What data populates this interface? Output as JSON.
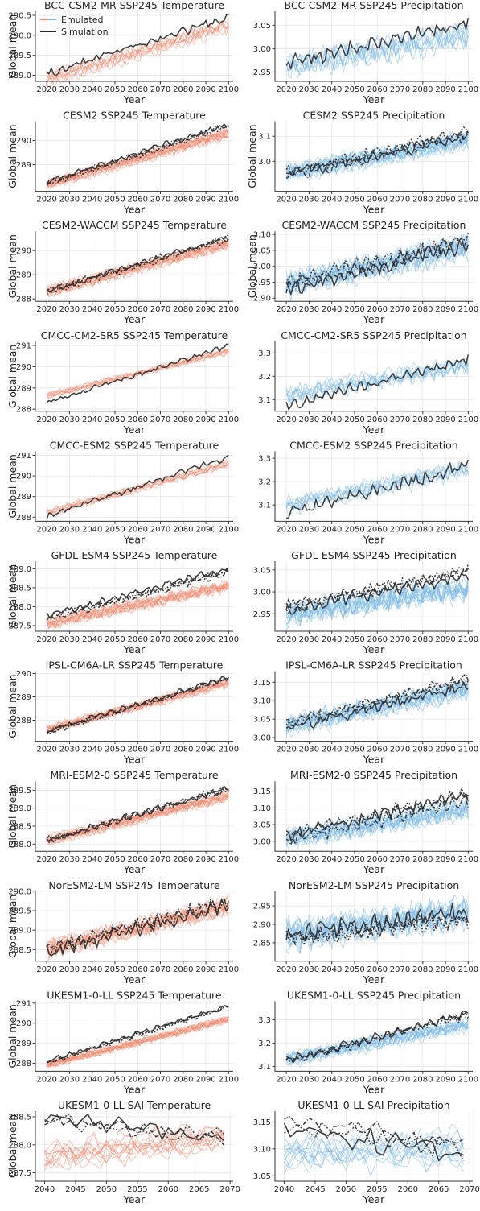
{
  "figure": {
    "legend": {
      "position": "top-left",
      "entries": [
        "Emulated",
        "Simulation"
      ]
    }
  },
  "colors": {
    "temperature": "#f08a70",
    "precipitation": "#79b8e6",
    "simulation": "#2b2b2b",
    "grid": "#e6e6e6",
    "axis": "#333333"
  },
  "chart_data": [
    {
      "type": "line",
      "title": "BCC-CSM2-MR SSP245 Temperature",
      "variable": "temperature",
      "xlabel": "Year",
      "ylabel": "Global mean",
      "xlim": [
        2015,
        2102
      ],
      "ylim": [
        288.85,
        290.6
      ],
      "xticks": [
        2020,
        2030,
        2040,
        2050,
        2060,
        2070,
        2080,
        2090,
        2100
      ],
      "yticks": [
        289.0,
        289.5,
        290.0,
        290.5
      ],
      "sim": {
        "start": 289.0,
        "end": 290.4,
        "noise": 0.08
      },
      "emu": {
        "start": 288.9,
        "end": 290.25,
        "noise": 0.12
      },
      "n_emu": 8,
      "n_sim": 1,
      "x_range": [
        2020,
        2100
      ],
      "legend": true
    },
    {
      "type": "line",
      "title": "BCC-CSM2-MR SSP245 Precipitation",
      "variable": "precipitation",
      "xlabel": "Year",
      "ylabel": "",
      "xlim": [
        2015,
        2102
      ],
      "ylim": [
        2.93,
        3.08
      ],
      "xticks": [
        2020,
        2030,
        2040,
        2050,
        2060,
        2070,
        2080,
        2090,
        2100
      ],
      "yticks": [
        2.95,
        3.0,
        3.05
      ],
      "sim": {
        "start": 2.97,
        "end": 3.06,
        "noise": 0.012
      },
      "emu": {
        "start": 2.96,
        "end": 3.03,
        "noise": 0.018
      },
      "n_emu": 8,
      "n_sim": 1,
      "x_range": [
        2020,
        2100
      ]
    },
    {
      "type": "line",
      "title": "CESM2 SSP245 Temperature",
      "variable": "temperature",
      "xlabel": "Year",
      "ylabel": "Global mean",
      "xlim": [
        2015,
        2102
      ],
      "ylim": [
        287.9,
        290.8
      ],
      "xticks": [
        2020,
        2030,
        2040,
        2050,
        2060,
        2070,
        2080,
        2090,
        2100
      ],
      "yticks": [
        289,
        290
      ],
      "sim": {
        "start": 288.2,
        "end": 290.6,
        "noise": 0.1
      },
      "emu": {
        "start": 288.2,
        "end": 290.3,
        "noise": 0.15
      },
      "n_emu": 14,
      "n_sim": 3,
      "x_range": [
        2020,
        2100
      ]
    },
    {
      "type": "line",
      "title": "CESM2 SSP245 Precipitation",
      "variable": "precipitation",
      "xlabel": "Year",
      "ylabel": "Global mean",
      "xlim": [
        2015,
        2102
      ],
      "ylim": [
        2.88,
        3.16
      ],
      "xticks": [
        2020,
        2030,
        2040,
        2050,
        2060,
        2070,
        2080,
        2090,
        2100
      ],
      "yticks": [
        3.0,
        3.1
      ],
      "sim": {
        "start": 2.95,
        "end": 3.11,
        "noise": 0.02
      },
      "emu": {
        "start": 2.95,
        "end": 3.08,
        "noise": 0.025
      },
      "n_emu": 14,
      "n_sim": 3,
      "x_range": [
        2020,
        2100
      ]
    },
    {
      "type": "line",
      "title": "CESM2-WACCM SSP245 Temperature",
      "variable": "temperature",
      "xlabel": "Year",
      "ylabel": "Global mean",
      "xlim": [
        2015,
        2102
      ],
      "ylim": [
        287.9,
        290.8
      ],
      "xticks": [
        2020,
        2030,
        2040,
        2050,
        2060,
        2070,
        2080,
        2090,
        2100
      ],
      "yticks": [
        288,
        289,
        290
      ],
      "sim": {
        "start": 288.3,
        "end": 290.5,
        "noise": 0.1
      },
      "emu": {
        "start": 288.3,
        "end": 290.3,
        "noise": 0.15
      },
      "n_emu": 14,
      "n_sim": 3,
      "x_range": [
        2020,
        2100
      ]
    },
    {
      "type": "line",
      "title": "CESM2-WACCM SSP245 Precipitation",
      "variable": "precipitation",
      "xlabel": "Year",
      "ylabel": "Global mean",
      "xlim": [
        2015,
        2102
      ],
      "ylim": [
        2.89,
        3.11
      ],
      "xticks": [
        2020,
        2030,
        2040,
        2050,
        2060,
        2070,
        2080,
        2090,
        2100
      ],
      "yticks": [
        2.9,
        2.95,
        3.0,
        3.05,
        3.1
      ],
      "sim": {
        "start": 2.94,
        "end": 3.08,
        "noise": 0.02
      },
      "emu": {
        "start": 2.94,
        "end": 3.06,
        "noise": 0.025
      },
      "n_emu": 14,
      "n_sim": 3,
      "x_range": [
        2020,
        2100
      ]
    },
    {
      "type": "line",
      "title": "CMCC-CM2-SR5 SSP245 Temperature",
      "variable": "temperature",
      "xlabel": "Year",
      "ylabel": "Global mean",
      "xlim": [
        2015,
        2102
      ],
      "ylim": [
        287.9,
        291.2
      ],
      "xticks": [
        2020,
        2030,
        2040,
        2050,
        2060,
        2070,
        2080,
        2090,
        2100
      ],
      "yticks": [
        288,
        289,
        290,
        291
      ],
      "sim": {
        "start": 288.3,
        "end": 291.0,
        "noise": 0.1
      },
      "emu": {
        "start": 288.6,
        "end": 290.7,
        "noise": 0.12
      },
      "n_emu": 8,
      "n_sim": 1,
      "x_range": [
        2020,
        2100
      ]
    },
    {
      "type": "line",
      "title": "CMCC-CM2-SR5 SSP245 Precipitation",
      "variable": "precipitation",
      "xlabel": "Year",
      "ylabel": "",
      "xlim": [
        2015,
        2102
      ],
      "ylim": [
        3.05,
        3.35
      ],
      "xticks": [
        2020,
        2030,
        2040,
        2050,
        2060,
        2070,
        2080,
        2090,
        2100
      ],
      "yticks": [
        3.1,
        3.2,
        3.3
      ],
      "sim": {
        "start": 3.09,
        "end": 3.29,
        "noise": 0.02
      },
      "emu": {
        "start": 3.12,
        "end": 3.25,
        "noise": 0.025
      },
      "n_emu": 8,
      "n_sim": 1,
      "x_range": [
        2020,
        2100
      ]
    },
    {
      "type": "line",
      "title": "CMCC-ESM2 SSP245 Temperature",
      "variable": "temperature",
      "xlabel": "Year",
      "ylabel": "Global mean",
      "xlim": [
        2015,
        2102
      ],
      "ylim": [
        287.8,
        291.2
      ],
      "xticks": [
        2020,
        2030,
        2040,
        2050,
        2060,
        2070,
        2080,
        2090,
        2100
      ],
      "yticks": [
        288,
        289,
        290,
        291
      ],
      "sim": {
        "start": 288.0,
        "end": 290.9,
        "noise": 0.12
      },
      "emu": {
        "start": 288.2,
        "end": 290.6,
        "noise": 0.12
      },
      "n_emu": 8,
      "n_sim": 1,
      "x_range": [
        2020,
        2100
      ]
    },
    {
      "type": "line",
      "title": "CMCC-ESM2 SSP245 Precipitation",
      "variable": "precipitation",
      "xlabel": "Year",
      "ylabel": "",
      "xlim": [
        2015,
        2102
      ],
      "ylim": [
        3.03,
        3.33
      ],
      "xticks": [
        2020,
        2030,
        2040,
        2050,
        2060,
        2070,
        2080,
        2090,
        2100
      ],
      "yticks": [
        3.1,
        3.2,
        3.3
      ],
      "sim": {
        "start": 3.07,
        "end": 3.28,
        "noise": 0.025
      },
      "emu": {
        "start": 3.09,
        "end": 3.25,
        "noise": 0.025
      },
      "n_emu": 8,
      "n_sim": 1,
      "x_range": [
        2020,
        2100
      ]
    },
    {
      "type": "line",
      "title": "GFDL-ESM4 SSP245 Temperature",
      "variable": "temperature",
      "xlabel": "Year",
      "ylabel": "Global mean",
      "xlim": [
        2015,
        2102
      ],
      "ylim": [
        287.35,
        289.2
      ],
      "xticks": [
        2020,
        2030,
        2040,
        2050,
        2060,
        2070,
        2080,
        2090,
        2100
      ],
      "yticks": [
        287.5,
        288.0,
        288.5,
        289.0
      ],
      "sim": {
        "start": 287.7,
        "end": 288.95,
        "noise": 0.08
      },
      "emu": {
        "start": 287.55,
        "end": 288.55,
        "noise": 0.1
      },
      "n_emu": 14,
      "n_sim": 3,
      "x_range": [
        2020,
        2100
      ]
    },
    {
      "type": "line",
      "title": "GFDL-ESM4 SSP245 Precipitation",
      "variable": "precipitation",
      "xlabel": "Year",
      "ylabel": "",
      "xlim": [
        2015,
        2102
      ],
      "ylim": [
        2.91,
        3.07
      ],
      "xticks": [
        2020,
        2030,
        2040,
        2050,
        2060,
        2070,
        2080,
        2090,
        2100
      ],
      "yticks": [
        2.95,
        3.0,
        3.05
      ],
      "sim": {
        "start": 2.96,
        "end": 3.04,
        "noise": 0.012
      },
      "emu": {
        "start": 2.95,
        "end": 3.01,
        "noise": 0.018
      },
      "n_emu": 14,
      "n_sim": 3,
      "x_range": [
        2020,
        2100
      ]
    },
    {
      "type": "line",
      "title": "IPSL-CM6A-LR SSP245 Temperature",
      "variable": "temperature",
      "xlabel": "Year",
      "ylabel": "Global mean",
      "xlim": [
        2015,
        2102
      ],
      "ylim": [
        287.1,
        290.1
      ],
      "xticks": [
        2020,
        2030,
        2040,
        2050,
        2060,
        2070,
        2080,
        2090,
        2100
      ],
      "yticks": [
        288,
        289,
        290
      ],
      "sim": {
        "start": 287.5,
        "end": 289.8,
        "noise": 0.1
      },
      "emu": {
        "start": 287.6,
        "end": 289.6,
        "noise": 0.12
      },
      "n_emu": 14,
      "n_sim": 3,
      "x_range": [
        2020,
        2100
      ]
    },
    {
      "type": "line",
      "title": "IPSL-CM6A-LR SSP245 Precipitation",
      "variable": "precipitation",
      "xlabel": "Year",
      "ylabel": "",
      "xlim": [
        2015,
        2102
      ],
      "ylim": [
        2.99,
        3.18
      ],
      "xticks": [
        2020,
        2030,
        2040,
        2050,
        2060,
        2070,
        2080,
        2090,
        2100
      ],
      "yticks": [
        3.0,
        3.05,
        3.1,
        3.15
      ],
      "sim": {
        "start": 3.03,
        "end": 3.15,
        "noise": 0.012
      },
      "emu": {
        "start": 3.03,
        "end": 3.13,
        "noise": 0.018
      },
      "n_emu": 14,
      "n_sim": 3,
      "x_range": [
        2020,
        2100
      ]
    },
    {
      "type": "line",
      "title": "MRI-ESM2-0 SSP245 Temperature",
      "variable": "temperature",
      "xlabel": "Year",
      "ylabel": "Global mean",
      "xlim": [
        2015,
        2102
      ],
      "ylim": [
        287.8,
        289.75
      ],
      "xticks": [
        2020,
        2030,
        2040,
        2050,
        2060,
        2070,
        2080,
        2090,
        2100
      ],
      "yticks": [
        288.0,
        288.5,
        289.0,
        289.5
      ],
      "sim": {
        "start": 288.1,
        "end": 289.55,
        "noise": 0.08
      },
      "emu": {
        "start": 288.1,
        "end": 289.35,
        "noise": 0.1
      },
      "n_emu": 14,
      "n_sim": 3,
      "x_range": [
        2020,
        2100
      ]
    },
    {
      "type": "line",
      "title": "MRI-ESM2-0 SSP245 Precipitation",
      "variable": "precipitation",
      "xlabel": "Year",
      "ylabel": "",
      "xlim": [
        2015,
        2102
      ],
      "ylim": [
        2.97,
        3.18
      ],
      "xticks": [
        2020,
        2030,
        2040,
        2050,
        2060,
        2070,
        2080,
        2090,
        2100
      ],
      "yticks": [
        3.0,
        3.05,
        3.1,
        3.15
      ],
      "sim": {
        "start": 3.01,
        "end": 3.13,
        "noise": 0.015
      },
      "emu": {
        "start": 3.01,
        "end": 3.1,
        "noise": 0.02
      },
      "n_emu": 14,
      "n_sim": 3,
      "x_range": [
        2020,
        2100
      ]
    },
    {
      "type": "line",
      "title": "NorESM2-LM SSP245 Temperature",
      "variable": "temperature",
      "xlabel": "Year",
      "ylabel": "Global mean",
      "xlim": [
        2015,
        2102
      ],
      "ylim": [
        288.2,
        290.0
      ],
      "xticks": [
        2020,
        2030,
        2040,
        2050,
        2060,
        2070,
        2080,
        2090,
        2100
      ],
      "yticks": [
        288.5,
        289.0,
        289.5,
        290.0
      ],
      "sim": {
        "start": 288.5,
        "end": 289.7,
        "noise": 0.15
      },
      "emu": {
        "start": 288.5,
        "end": 289.6,
        "noise": 0.15
      },
      "n_emu": 14,
      "n_sim": 3,
      "x_range": [
        2020,
        2100
      ]
    },
    {
      "type": "line",
      "title": "NorESM2-LM SSP245 Precipitation",
      "variable": "precipitation",
      "xlabel": "Year",
      "ylabel": "",
      "xlim": [
        2015,
        2102
      ],
      "ylim": [
        2.8,
        2.99
      ],
      "xticks": [
        2020,
        2030,
        2040,
        2050,
        2060,
        2070,
        2080,
        2090,
        2100
      ],
      "yticks": [
        2.85,
        2.9,
        2.95
      ],
      "sim": {
        "start": 2.87,
        "end": 2.93,
        "noise": 0.02
      },
      "emu": {
        "start": 2.87,
        "end": 2.93,
        "noise": 0.025
      },
      "n_emu": 14,
      "n_sim": 3,
      "x_range": [
        2020,
        2100
      ]
    },
    {
      "type": "line",
      "title": "UKESM1-0-LL SSP245 Temperature",
      "variable": "temperature",
      "xlabel": "Year",
      "ylabel": "Global mean",
      "xlim": [
        2015,
        2102
      ],
      "ylim": [
        287.6,
        291.1
      ],
      "xticks": [
        2020,
        2030,
        2040,
        2050,
        2060,
        2070,
        2080,
        2090,
        2100
      ],
      "yticks": [
        288,
        289,
        290,
        291
      ],
      "sim": {
        "start": 288.0,
        "end": 290.8,
        "noise": 0.1
      },
      "emu": {
        "start": 287.9,
        "end": 290.2,
        "noise": 0.13
      },
      "n_emu": 14,
      "n_sim": 3,
      "x_range": [
        2020,
        2100
      ]
    },
    {
      "type": "line",
      "title": "UKESM1-0-LL SSP245 Precipitation",
      "variable": "precipitation",
      "xlabel": "Year",
      "ylabel": "",
      "xlim": [
        2015,
        2102
      ],
      "ylim": [
        3.08,
        3.38
      ],
      "xticks": [
        2020,
        2030,
        2040,
        2050,
        2060,
        2070,
        2080,
        2090,
        2100
      ],
      "yticks": [
        3.1,
        3.2,
        3.3
      ],
      "sim": {
        "start": 3.13,
        "end": 3.33,
        "noise": 0.015
      },
      "emu": {
        "start": 3.13,
        "end": 3.28,
        "noise": 0.02
      },
      "n_emu": 14,
      "n_sim": 3,
      "x_range": [
        2020,
        2100
      ]
    },
    {
      "type": "line",
      "title": "UKESM1-0-LL SAI Temperature",
      "variable": "temperature",
      "xlabel": "Year",
      "ylabel": "Global mean",
      "xlim": [
        2038.5,
        2070.5
      ],
      "ylim": [
        287.35,
        288.6
      ],
      "xticks": [
        2040,
        2045,
        2050,
        2055,
        2060,
        2065,
        2070
      ],
      "yticks": [
        287.5,
        288.0,
        288.5
      ],
      "sim": {
        "start": 288.4,
        "end": 288.05,
        "noise": 0.12
      },
      "emu": {
        "start": 287.8,
        "end": 288.15,
        "noise": 0.18
      },
      "n_emu": 12,
      "n_sim": 3,
      "x_range": [
        2040,
        2069
      ]
    },
    {
      "type": "line",
      "title": "UKESM1-0-LL SAI Precipitation",
      "variable": "precipitation",
      "xlabel": "Year",
      "ylabel": "",
      "xlim": [
        2038.5,
        2070.5
      ],
      "ylim": [
        3.04,
        3.17
      ],
      "xticks": [
        2040,
        2045,
        2050,
        2055,
        2060,
        2065,
        2070
      ],
      "yticks": [
        3.05,
        3.1,
        3.15
      ],
      "sim": {
        "start": 3.14,
        "end": 3.1,
        "noise": 0.018
      },
      "emu": {
        "start": 3.09,
        "end": 3.1,
        "noise": 0.022
      },
      "n_emu": 12,
      "n_sim": 3,
      "x_range": [
        2040,
        2069
      ]
    }
  ]
}
